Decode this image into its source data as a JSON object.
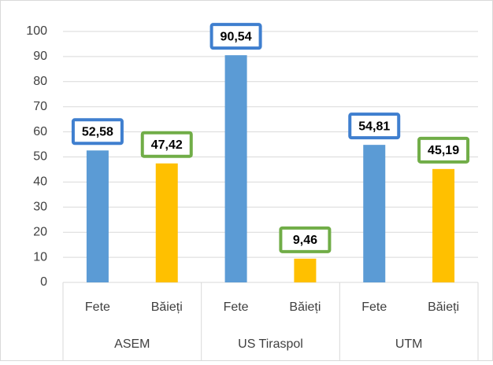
{
  "chart_data": {
    "type": "bar",
    "categories": [
      "Fete",
      "Băieți",
      "Fete",
      "Băieți",
      "Fete",
      "Băieți"
    ],
    "groups": [
      "ASEM",
      "US Tiraspol",
      "UTM"
    ],
    "values": [
      52.58,
      47.42,
      90.54,
      9.46,
      54.81,
      45.19
    ],
    "value_labels": [
      "52,58",
      "47,42",
      "90,54",
      "9,46",
      "54,81",
      "45,19"
    ],
    "colors": [
      "#5b9bd5",
      "#ffc000",
      "#5b9bd5",
      "#ffc000",
      "#5b9bd5",
      "#ffc000"
    ],
    "label_border_colors": [
      "#3f7fcf",
      "#70ad47",
      "#3f7fcf",
      "#70ad47",
      "#3f7fcf",
      "#70ad47"
    ],
    "ylim": [
      0,
      100
    ],
    "yticks": [
      0,
      10,
      20,
      30,
      40,
      50,
      60,
      70,
      80,
      90,
      100
    ],
    "grid": true
  }
}
